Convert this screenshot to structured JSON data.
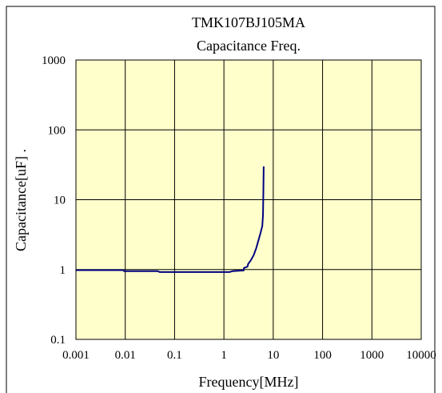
{
  "chart_data": {
    "type": "line",
    "title": "TMK107BJ105MA",
    "subtitle": "Capacitance Freq.",
    "xlabel": "Frequency[MHz]",
    "ylabel": "Capacitance[uF] .",
    "xscale": "log",
    "yscale": "log",
    "xlim": [
      0.001,
      10000
    ],
    "ylim": [
      0.1,
      1000
    ],
    "xticks": [
      0.001,
      0.01,
      0.1,
      1,
      10,
      100,
      1000,
      10000
    ],
    "xtick_labels": [
      "0.001",
      "0.01",
      "0.1",
      "1",
      "10",
      "100",
      "1000",
      "10000"
    ],
    "yticks": [
      0.1,
      1,
      10,
      100,
      1000
    ],
    "ytick_labels": [
      "0.1",
      "1",
      "10",
      "100",
      "1000"
    ],
    "grid": true,
    "legend": "none",
    "colors": {
      "plot_background": "#ffffcc",
      "line": "#000080",
      "grid": "#000000",
      "frame": "#000000"
    },
    "series": [
      {
        "x": [
          0.001,
          0.009,
          0.0095,
          0.045,
          0.05,
          0.3,
          1.3,
          1.5,
          2.0,
          2.5,
          2.55,
          3.0,
          3.1,
          3.5,
          4.0,
          4.5,
          5.0,
          5.5,
          6.0,
          6.2,
          6.3,
          6.4
        ],
        "y": [
          0.98,
          0.98,
          0.95,
          0.95,
          0.92,
          0.92,
          0.92,
          0.95,
          0.96,
          0.97,
          1.05,
          1.1,
          1.2,
          1.35,
          1.6,
          2.0,
          2.6,
          3.3,
          4.2,
          6.0,
          12.0,
          30.0
        ]
      }
    ]
  }
}
